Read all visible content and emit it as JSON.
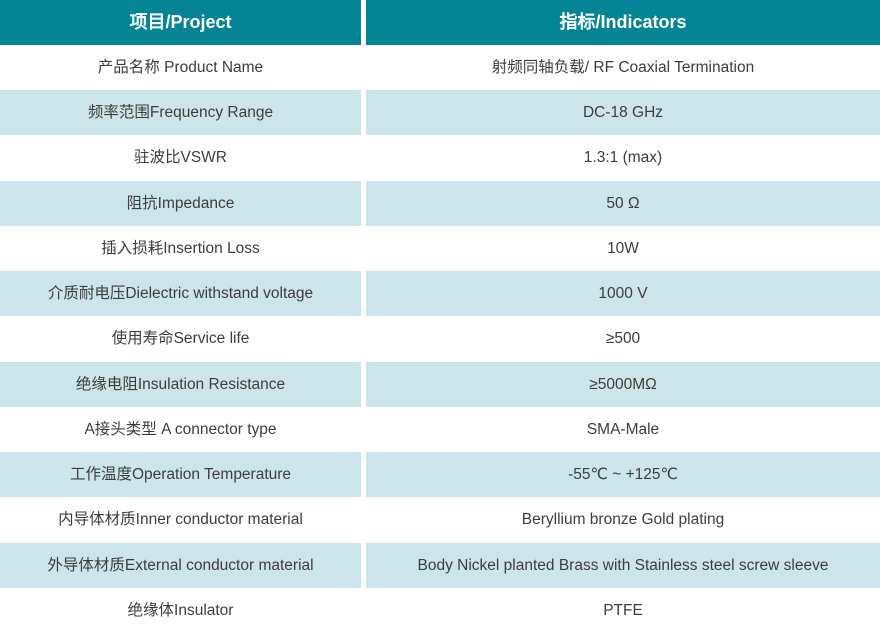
{
  "table": {
    "header": {
      "project": "项目/Project",
      "indicators": "指标/Indicators"
    },
    "rows": [
      {
        "project": "产品名称 Product Name",
        "indicator": "射频同轴负载/ RF Coaxial Termination"
      },
      {
        "project": "频率范围Frequency Range",
        "indicator": "DC-18 GHz"
      },
      {
        "project": "驻波比VSWR",
        "indicator": "1.3:1 (max)"
      },
      {
        "project": "阻抗Impedance",
        "indicator": "50 Ω"
      },
      {
        "project": "插入损耗Insertion Loss",
        "indicator": "10W"
      },
      {
        "project": "介质耐电压Dielectric withstand voltage",
        "indicator": "1000 V"
      },
      {
        "project": "使用寿命Service life",
        "indicator": "≥500"
      },
      {
        "project": "绝缘电阻Insulation Resistance",
        "indicator": "≥5000MΩ"
      },
      {
        "project": "A接头类型 A connector type",
        "indicator": "SMA-Male"
      },
      {
        "project": "工作温度Operation Temperature",
        "indicator": "-55℃ ~ +125℃"
      },
      {
        "project": "内导体材质Inner conductor material",
        "indicator": "Beryllium bronze Gold plating"
      },
      {
        "project": "外导体材质External conductor material",
        "indicator": "Body Nickel planted Brass with Stainless steel screw sleeve"
      },
      {
        "project": "绝缘体Insulator",
        "indicator": "PTFE"
      }
    ]
  },
  "colors": {
    "header_bg": "#048494",
    "alt_row_bg": "#cce5ea",
    "header_text": "#ffffff",
    "body_text": "#3d3d3d",
    "divider": "#ffffff"
  }
}
